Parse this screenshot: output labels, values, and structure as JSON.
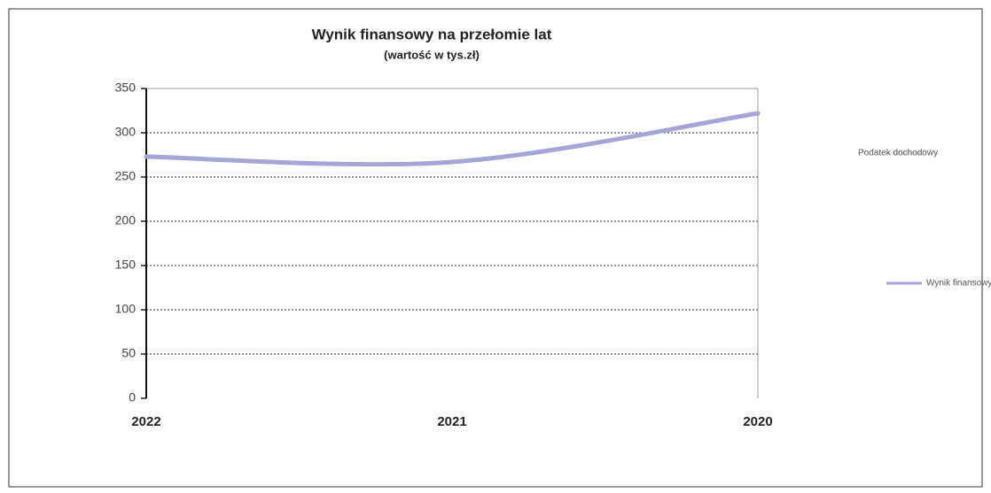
{
  "chart_data": {
    "type": "line",
    "title": "Wynik finansowy na przełomie lat",
    "subtitle": "(wartość w tys.zł)",
    "categories": [
      "2022",
      "2021",
      "2020"
    ],
    "series": [
      {
        "name": "Podatek dochodowy",
        "color": "#e6e6ef",
        "values": [
          null,
          null,
          null
        ]
      },
      {
        "name": "Wynik finansowy netto",
        "color": "#a3a6d6",
        "values": [
          273,
          267,
          322
        ]
      }
    ],
    "ylim": [
      0,
      350
    ],
    "yticks": [
      0,
      50,
      100,
      150,
      200,
      250,
      300,
      350
    ],
    "grid": true,
    "legend": "right"
  }
}
